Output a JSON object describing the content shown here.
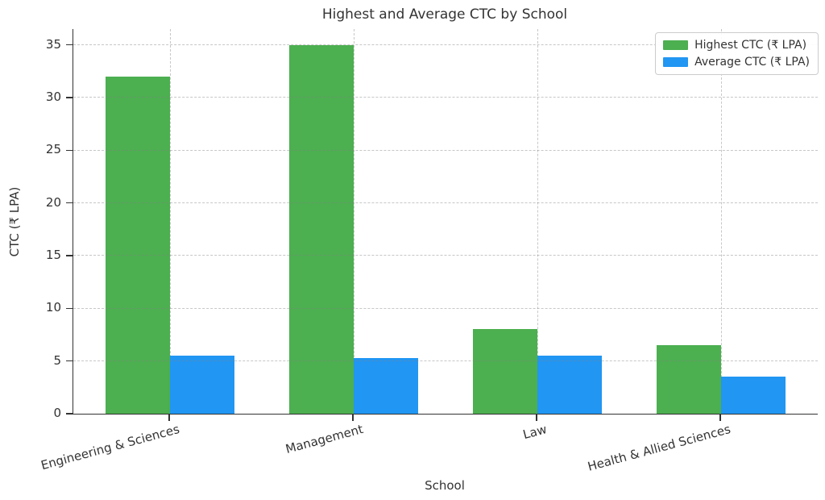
{
  "chart_data": {
    "type": "bar",
    "title": "Highest and Average CTC by School",
    "xlabel": "School",
    "ylabel": "CTC (₹ LPA)",
    "categories": [
      "Engineering & Sciences",
      "Management",
      "Law",
      "Health & Allied Sciences"
    ],
    "series": [
      {
        "name": "Highest CTC (₹ LPA)",
        "color": "#4CAF50",
        "values": [
          32,
          35,
          8,
          6.5
        ]
      },
      {
        "name": "Average CTC (₹ LPA)",
        "color": "#2196F3",
        "values": [
          5.5,
          5.3,
          5.5,
          3.5
        ]
      }
    ],
    "ylim": [
      0,
      36.5
    ],
    "yticks": [
      0,
      5,
      10,
      15,
      20,
      25,
      30,
      35
    ],
    "grid": true,
    "grid_style": "dashed",
    "legend_position": "upper right",
    "background_color": "#ffffff",
    "text_color": "#333333"
  }
}
